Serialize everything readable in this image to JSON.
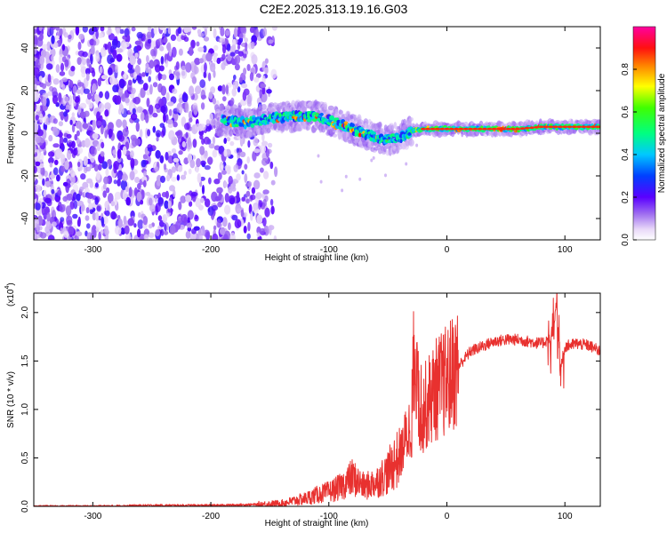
{
  "title": "C2E2.2025.313.19.16.G03",
  "chart_data": [
    {
      "type": "heatmap",
      "name": "spectrogram",
      "xlabel": "Height of straight line (km)",
      "ylabel": "Frequency (Hz)",
      "xlim": [
        -350,
        130
      ],
      "ylim": [
        -50,
        50
      ],
      "xticks": [
        -300,
        -200,
        -100,
        0,
        100
      ],
      "yticks": [
        -40,
        -20,
        0,
        20,
        40
      ],
      "xtick_labels": [
        "-300",
        "-200",
        "-100",
        "0",
        "100"
      ],
      "ytick_labels": [
        "-40",
        "-20",
        "0",
        "20",
        "40"
      ],
      "noise_region_km": [
        -350,
        -160
      ],
      "signal_track": [
        {
          "x": -190,
          "y": 6
        },
        {
          "x": -170,
          "y": 5
        },
        {
          "x": -150,
          "y": 7
        },
        {
          "x": -130,
          "y": 8
        },
        {
          "x": -110,
          "y": 8
        },
        {
          "x": -100,
          "y": 6
        },
        {
          "x": -90,
          "y": 4
        },
        {
          "x": -80,
          "y": 2
        },
        {
          "x": -70,
          "y": 0
        },
        {
          "x": -60,
          "y": -2
        },
        {
          "x": -50,
          "y": -3
        },
        {
          "x": -40,
          "y": -2
        },
        {
          "x": -30,
          "y": 1
        },
        {
          "x": -20,
          "y": 2
        },
        {
          "x": -10,
          "y": 2
        },
        {
          "x": 0,
          "y": 2
        },
        {
          "x": 20,
          "y": 2
        },
        {
          "x": 40,
          "y": 2
        },
        {
          "x": 60,
          "y": 2
        },
        {
          "x": 80,
          "y": 3
        },
        {
          "x": 100,
          "y": 3
        },
        {
          "x": 130,
          "y": 3
        }
      ],
      "colorbar": {
        "label": "Normalized spectral amplitude",
        "range": [
          0,
          1
        ],
        "ticks": [
          0.0,
          0.2,
          0.4,
          0.6,
          0.8
        ],
        "tick_labels": [
          "0.0",
          "0.2",
          "0.4",
          "0.6",
          "0.8"
        ]
      }
    },
    {
      "type": "line",
      "name": "snr",
      "xlabel": "Height of straight line (km)",
      "ylabel": "SNR (10 * v/v)",
      "y_multiplier": "(x10",
      "y_multiplier_exp": "4",
      "y_multiplier_close": ")",
      "xlim": [
        -350,
        130
      ],
      "ylim": [
        0,
        2.2
      ],
      "xticks": [
        -300,
        -200,
        -100,
        0,
        100
      ],
      "yticks": [
        0.0,
        0.5,
        1.0,
        1.5,
        2.0
      ],
      "xtick_labels": [
        "-300",
        "-200",
        "-100",
        "0",
        "100"
      ],
      "ytick_labels": [
        "0.0",
        "0.5",
        "1.0",
        "1.5",
        "2.0"
      ],
      "series": [
        {
          "name": "SNR",
          "color": "#e8312f",
          "x": [
            -350,
            -300,
            -250,
            -200,
            -160,
            -140,
            -120,
            -110,
            -100,
            -90,
            -80,
            -70,
            -60,
            -50,
            -45,
            -40,
            -35,
            -30,
            -27,
            -25,
            -22,
            -20,
            -15,
            -10,
            -5,
            0,
            10,
            20,
            30,
            40,
            50,
            60,
            70,
            80,
            90,
            93,
            96,
            100,
            110,
            120,
            130
          ],
          "values": [
            0.0,
            0.0,
            0.01,
            0.01,
            0.02,
            0.03,
            0.08,
            0.12,
            0.15,
            0.2,
            0.3,
            0.2,
            0.25,
            0.35,
            0.45,
            0.5,
            0.7,
            0.85,
            1.5,
            1.1,
            0.9,
            1.0,
            1.1,
            1.2,
            1.25,
            1.3,
            1.45,
            1.6,
            1.65,
            1.7,
            1.72,
            1.72,
            1.7,
            1.68,
            1.75,
            2.1,
            1.4,
            1.65,
            1.68,
            1.66,
            1.6
          ]
        }
      ]
    }
  ]
}
